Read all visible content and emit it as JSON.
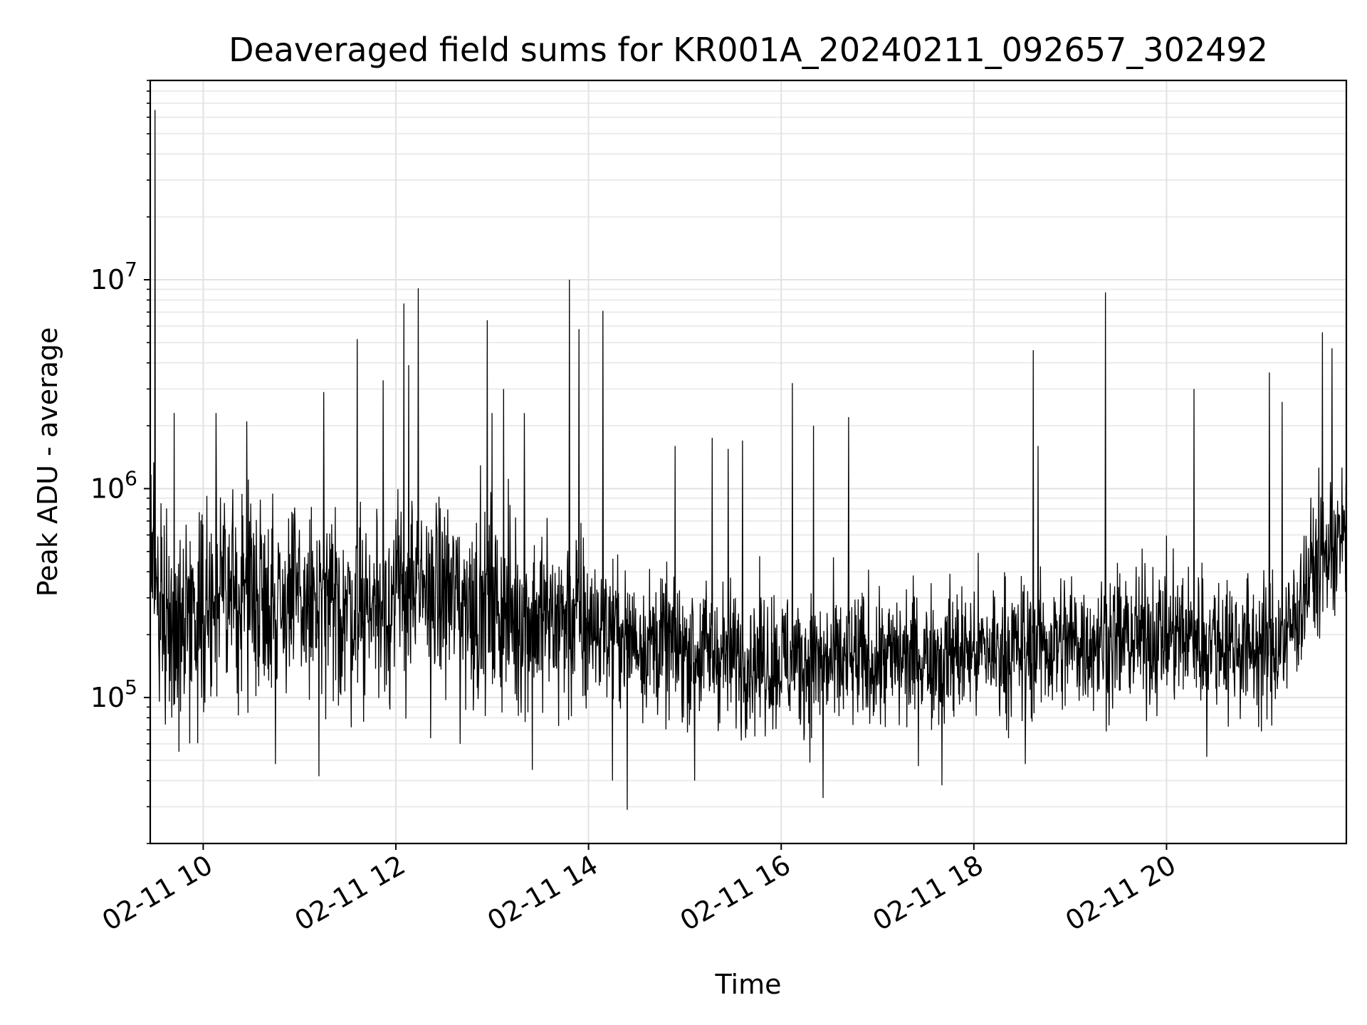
{
  "chart_data": {
    "type": "line",
    "title": "Deaveraged field sums for KR001A_20240211_092657_302492",
    "xlabel": "Time",
    "ylabel": "Peak ADU - average",
    "x_range": [
      "02-11 09:27",
      "02-11 21:52"
    ],
    "y_scale": "log",
    "y_range": [
      20000,
      90000000
    ],
    "grid": true,
    "grid_minor": true,
    "x_ticks": [
      {
        "time": "02-11 10:00",
        "label": "02-11 10"
      },
      {
        "time": "02-11 12:00",
        "label": "02-11 12"
      },
      {
        "time": "02-11 14:00",
        "label": "02-11 14"
      },
      {
        "time": "02-11 16:00",
        "label": "02-11 16"
      },
      {
        "time": "02-11 18:00",
        "label": "02-11 18"
      },
      {
        "time": "02-11 20:00",
        "label": "02-11 20"
      }
    ],
    "y_ticks": [
      {
        "value": 100000,
        "base": "10",
        "exp": "5"
      },
      {
        "value": 1000000,
        "base": "10",
        "exp": "6"
      },
      {
        "value": 10000000,
        "base": "10",
        "exp": "7"
      }
    ],
    "line_color": "#000000",
    "baseline_profile": {
      "time": [
        "02-11 09:27",
        "02-11 09:40",
        "02-11 10:00",
        "02-11 10:30",
        "02-11 11:00",
        "02-11 11:30",
        "02-11 12:00",
        "02-11 12:30",
        "02-11 13:00",
        "02-11 13:30",
        "02-11 14:00",
        "02-11 14:30",
        "02-11 15:00",
        "02-11 15:30",
        "02-11 16:00",
        "02-11 16:30",
        "02-11 17:00",
        "02-11 17:30",
        "02-11 18:00",
        "02-11 18:30",
        "02-11 19:00",
        "02-11 19:30",
        "02-11 20:00",
        "02-11 20:30",
        "02-11 21:00",
        "02-11 21:15",
        "02-11 21:30",
        "02-11 21:52"
      ],
      "value": [
        450000,
        220000,
        280000,
        330000,
        280000,
        260000,
        300000,
        320000,
        260000,
        240000,
        220000,
        190000,
        170000,
        160000,
        150000,
        145000,
        150000,
        160000,
        165000,
        170000,
        185000,
        190000,
        200000,
        190000,
        170000,
        190000,
        400000,
        600000
      ]
    },
    "spikes": [
      {
        "time": "02-11 09:30",
        "value": 65000000
      },
      {
        "time": "02-11 09:42",
        "value": 2300000
      },
      {
        "time": "02-11 10:08",
        "value": 2300000
      },
      {
        "time": "02-11 10:27",
        "value": 2100000
      },
      {
        "time": "02-11 11:15",
        "value": 2900000
      },
      {
        "time": "02-11 11:36",
        "value": 5200000
      },
      {
        "time": "02-11 11:52",
        "value": 3300000
      },
      {
        "time": "02-11 12:05",
        "value": 7700000
      },
      {
        "time": "02-11 12:08",
        "value": 3900000
      },
      {
        "time": "02-11 12:14",
        "value": 9100000
      },
      {
        "time": "02-11 12:57",
        "value": 6400000
      },
      {
        "time": "02-11 13:00",
        "value": 2300000
      },
      {
        "time": "02-11 13:07",
        "value": 3000000
      },
      {
        "time": "02-11 13:20",
        "value": 2300000
      },
      {
        "time": "02-11 13:48",
        "value": 10000000
      },
      {
        "time": "02-11 13:54",
        "value": 5800000
      },
      {
        "time": "02-11 14:09",
        "value": 7100000
      },
      {
        "time": "02-11 14:54",
        "value": 1600000
      },
      {
        "time": "02-11 15:17",
        "value": 1750000
      },
      {
        "time": "02-11 15:27",
        "value": 1550000
      },
      {
        "time": "02-11 15:36",
        "value": 1700000
      },
      {
        "time": "02-11 16:07",
        "value": 3200000
      },
      {
        "time": "02-11 16:20",
        "value": 2000000
      },
      {
        "time": "02-11 16:42",
        "value": 2200000
      },
      {
        "time": "02-11 18:37",
        "value": 4600000
      },
      {
        "time": "02-11 18:40",
        "value": 1600000
      },
      {
        "time": "02-11 19:22",
        "value": 8700000
      },
      {
        "time": "02-11 20:17",
        "value": 3000000
      },
      {
        "time": "02-11 21:04",
        "value": 3600000
      },
      {
        "time": "02-11 21:12",
        "value": 2600000
      },
      {
        "time": "02-11 21:37",
        "value": 5600000
      },
      {
        "time": "02-11 21:43",
        "value": 4700000
      }
    ],
    "dips": [
      {
        "time": "02-11 09:45",
        "value": 55000
      },
      {
        "time": "02-11 10:45",
        "value": 48000
      },
      {
        "time": "02-11 11:12",
        "value": 42000
      },
      {
        "time": "02-11 12:40",
        "value": 60000
      },
      {
        "time": "02-11 13:25",
        "value": 45000
      },
      {
        "time": "02-11 14:15",
        "value": 40000
      },
      {
        "time": "02-11 14:24",
        "value": 29000
      },
      {
        "time": "02-11 15:06",
        "value": 40000
      },
      {
        "time": "02-11 16:26",
        "value": 33000
      },
      {
        "time": "02-11 17:40",
        "value": 38000
      },
      {
        "time": "02-11 18:32",
        "value": 48000
      },
      {
        "time": "02-11 20:25",
        "value": 52000
      }
    ]
  }
}
